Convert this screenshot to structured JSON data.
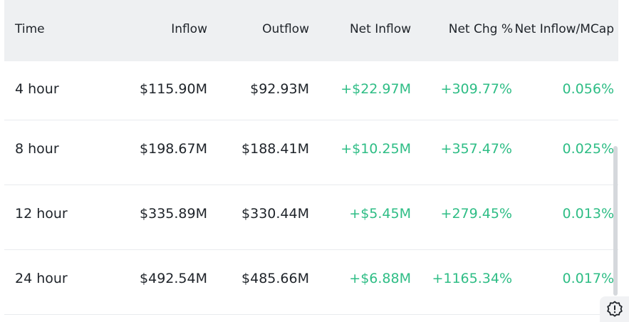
{
  "table": {
    "headers": {
      "time": "Time",
      "inflow": "Inflow",
      "outflow": "Outflow",
      "net_inflow": "Net Inflow",
      "net_chg": "Net Chg %",
      "net_inflow_mcap": "Net Inflow/MCap"
    },
    "rows": [
      {
        "time": "4 hour",
        "inflow": "$115.90M",
        "outflow": "$92.93M",
        "net_inflow": "+$22.97M",
        "net_chg": "+309.77%",
        "mcap": "0.056%"
      },
      {
        "time": "8 hour",
        "inflow": "$198.67M",
        "outflow": "$188.41M",
        "net_inflow": "+$10.25M",
        "net_chg": "+357.47%",
        "mcap": "0.025%"
      },
      {
        "time": "12 hour",
        "inflow": "$335.89M",
        "outflow": "$330.44M",
        "net_inflow": "+$5.45M",
        "net_chg": "+279.45%",
        "mcap": "0.013%"
      },
      {
        "time": "24 hour",
        "inflow": "$492.54M",
        "outflow": "$485.66M",
        "net_inflow": "+$6.88M",
        "net_chg": "+1165.34%",
        "mcap": "0.017%"
      }
    ]
  },
  "colors": {
    "positive": "#2ebd85",
    "header_bg": "#eef0f2",
    "text": "#1e2329"
  },
  "icons": {
    "help": "alert-badge-icon"
  }
}
